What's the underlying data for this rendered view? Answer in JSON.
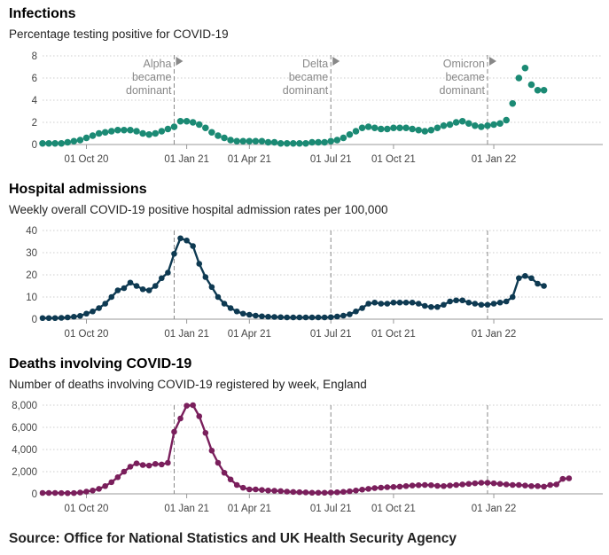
{
  "colors": {
    "infections": "#1b8a74",
    "hospital": "#0e3a52",
    "deaths": "#7a1f5c",
    "grid": "#cccccc",
    "annotation": "#888888"
  },
  "x_ticks": [
    "01 Oct 20",
    "01 Jan 21",
    "01 Apr 21",
    "01 Jul 21",
    "01 Oct 21",
    "01 Jan 22"
  ],
  "annotations": [
    {
      "lines": [
        "Alpha",
        "became",
        "dominant"
      ],
      "week": 21
    },
    {
      "lines": [
        "Delta",
        "became",
        "dominant"
      ],
      "week": 46
    },
    {
      "lines": [
        "Omicron",
        "became",
        "dominant"
      ],
      "week": 71
    }
  ],
  "source": "Source: Office for National Statistics and UK Health Security Agency",
  "chart_data": [
    {
      "type": "scatter",
      "title": "Infections",
      "subtitle": "Percentage testing positive for COVID-19",
      "ylim": [
        0,
        8
      ],
      "yticks": [
        0,
        2,
        4,
        6,
        8
      ],
      "x_week_ticks": [
        7,
        23,
        33,
        46,
        56,
        72
      ],
      "values": [
        0.1,
        0.1,
        0.1,
        0.1,
        0.2,
        0.3,
        0.4,
        0.6,
        0.8,
        1.0,
        1.1,
        1.2,
        1.3,
        1.3,
        1.3,
        1.2,
        1.0,
        0.9,
        1.0,
        1.2,
        1.4,
        1.6,
        2.1,
        2.1,
        2.0,
        1.8,
        1.5,
        1.1,
        0.8,
        0.6,
        0.4,
        0.3,
        0.3,
        0.3,
        0.3,
        0.3,
        0.2,
        0.2,
        0.1,
        0.1,
        0.1,
        0.1,
        0.1,
        0.2,
        0.2,
        0.2,
        0.3,
        0.4,
        0.6,
        0.9,
        1.2,
        1.5,
        1.6,
        1.5,
        1.4,
        1.4,
        1.5,
        1.5,
        1.5,
        1.4,
        1.3,
        1.2,
        1.3,
        1.5,
        1.7,
        1.8,
        2.0,
        2.1,
        1.9,
        1.7,
        1.6,
        1.7,
        1.8,
        1.9,
        2.2,
        3.7,
        6.0,
        6.9,
        5.4,
        4.9,
        4.9
      ]
    },
    {
      "type": "line",
      "title": "Hospital admissions",
      "subtitle": "Weekly overall COVID-19 positive hospital admission rates per 100,000",
      "ylim": [
        0,
        40
      ],
      "yticks": [
        0,
        10,
        20,
        30,
        40
      ],
      "x_week_ticks": [
        7,
        23,
        33,
        46,
        56,
        72
      ],
      "values": [
        0.5,
        0.5,
        0.5,
        0.6,
        0.8,
        1.1,
        1.5,
        2.5,
        3.5,
        5.0,
        7.0,
        10.0,
        13.0,
        14.0,
        16.5,
        15.0,
        13.5,
        13.0,
        15.0,
        18.5,
        21.0,
        29.5,
        36.5,
        35.5,
        33.0,
        25.0,
        19.0,
        14.5,
        10.0,
        7.0,
        5.0,
        3.5,
        2.5,
        2.0,
        1.6,
        1.3,
        1.1,
        1.0,
        0.9,
        0.8,
        0.8,
        0.8,
        0.8,
        0.8,
        0.8,
        0.8,
        0.9,
        1.2,
        1.6,
        2.2,
        3.5,
        5.0,
        7.0,
        7.5,
        7.0,
        7.0,
        7.5,
        7.5,
        7.5,
        7.5,
        7.0,
        6.0,
        5.5,
        5.5,
        6.5,
        8.0,
        8.5,
        8.5,
        7.5,
        7.0,
        6.5,
        6.5,
        7.0,
        7.5,
        8.0,
        10.0,
        18.5,
        19.5,
        18.5,
        16.0,
        15.0
      ]
    },
    {
      "type": "line",
      "title": "Deaths involving COVID-19",
      "subtitle": "Number of deaths involving COVID-19 registered by week, England",
      "ylim": [
        0,
        8000
      ],
      "yticks": [
        0,
        2000,
        4000,
        6000,
        8000
      ],
      "ytick_labels": [
        "0",
        "2,000",
        "4,000",
        "6,000",
        "8,000"
      ],
      "x_week_ticks": [
        7,
        23,
        33,
        46,
        56,
        72
      ],
      "values": [
        80,
        80,
        80,
        70,
        60,
        70,
        120,
        200,
        300,
        450,
        700,
        1050,
        1500,
        2000,
        2450,
        2750,
        2600,
        2550,
        2700,
        2650,
        2800,
        5600,
        6800,
        7950,
        8000,
        7000,
        5500,
        3900,
        2800,
        1900,
        1300,
        800,
        550,
        400,
        400,
        350,
        300,
        280,
        250,
        200,
        170,
        150,
        130,
        100,
        100,
        100,
        120,
        140,
        180,
        230,
        300,
        380,
        450,
        520,
        560,
        600,
        620,
        650,
        700,
        750,
        780,
        800,
        780,
        720,
        700,
        750,
        800,
        850,
        900,
        950,
        1000,
        1000,
        950,
        900,
        850,
        800,
        800,
        750,
        700,
        700,
        650,
        800,
        850,
        1350,
        1400
      ]
    }
  ]
}
